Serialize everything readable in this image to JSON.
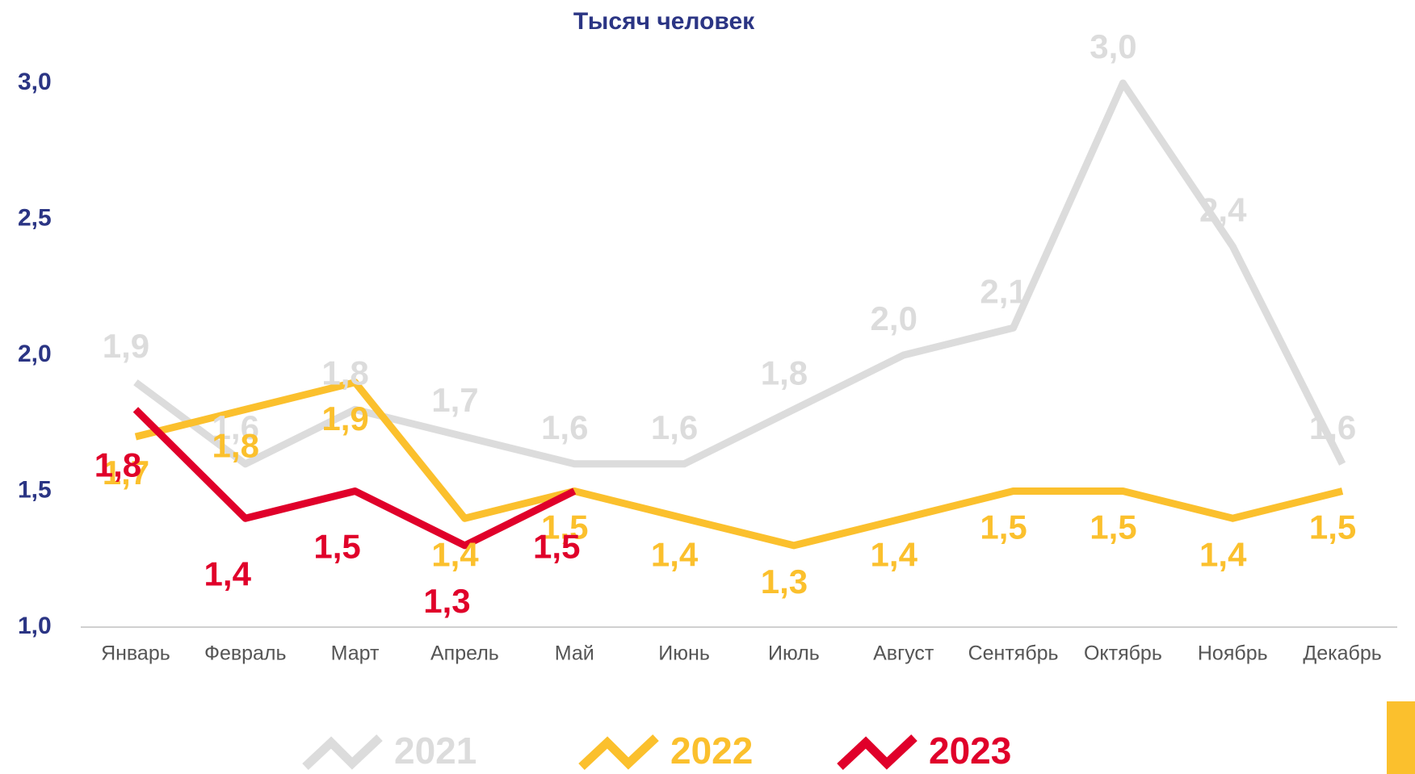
{
  "chart_data": {
    "type": "line",
    "title": "Тысяч человек",
    "categories": [
      "Январь",
      "Февраль",
      "Март",
      "Апрель",
      "Май",
      "Июнь",
      "Июль",
      "Август",
      "Сентябрь",
      "Октябрь",
      "Ноябрь",
      "Декабрь"
    ],
    "series": [
      {
        "name": "2021",
        "color": "#dcdcdc",
        "values": [
          1.9,
          1.6,
          1.8,
          1.7,
          1.6,
          1.6,
          1.8,
          2.0,
          2.1,
          3.0,
          2.4,
          1.6
        ],
        "value_labels": [
          "1,9",
          "1,6",
          "1,8",
          "1,7",
          "1,6",
          "1,6",
          "1,8",
          "2,0",
          "2,1",
          "3,0",
          "2,4",
          "1,6"
        ]
      },
      {
        "name": "2022",
        "color": "#fbc02d",
        "values": [
          1.7,
          1.8,
          1.9,
          1.4,
          1.5,
          1.4,
          1.3,
          1.4,
          1.5,
          1.5,
          1.4,
          1.5
        ],
        "value_labels": [
          "1,7",
          "1,8",
          "1,9",
          "1,4",
          "1,5",
          "1,4",
          "1,3",
          "1,4",
          "1,5",
          "1,5",
          "1,4",
          "1,5"
        ]
      },
      {
        "name": "2023",
        "color": "#e0002a",
        "values": [
          1.8,
          1.4,
          1.5,
          1.3,
          1.5,
          null,
          null,
          null,
          null,
          null,
          null,
          null
        ],
        "value_labels": [
          "1,8",
          "1,4",
          "1,5",
          "1,3",
          "1,5",
          null,
          null,
          null,
          null,
          null,
          null,
          null
        ]
      }
    ],
    "ylim": [
      1.0,
      3.0
    ],
    "yticks": [
      {
        "value": 1.0,
        "label": "1,0"
      },
      {
        "value": 1.5,
        "label": "1,5"
      },
      {
        "value": 2.0,
        "label": "2,0"
      },
      {
        "value": 2.5,
        "label": "2,5"
      },
      {
        "value": 3.0,
        "label": "3,0"
      }
    ],
    "grid": false,
    "legend": "bottom"
  }
}
